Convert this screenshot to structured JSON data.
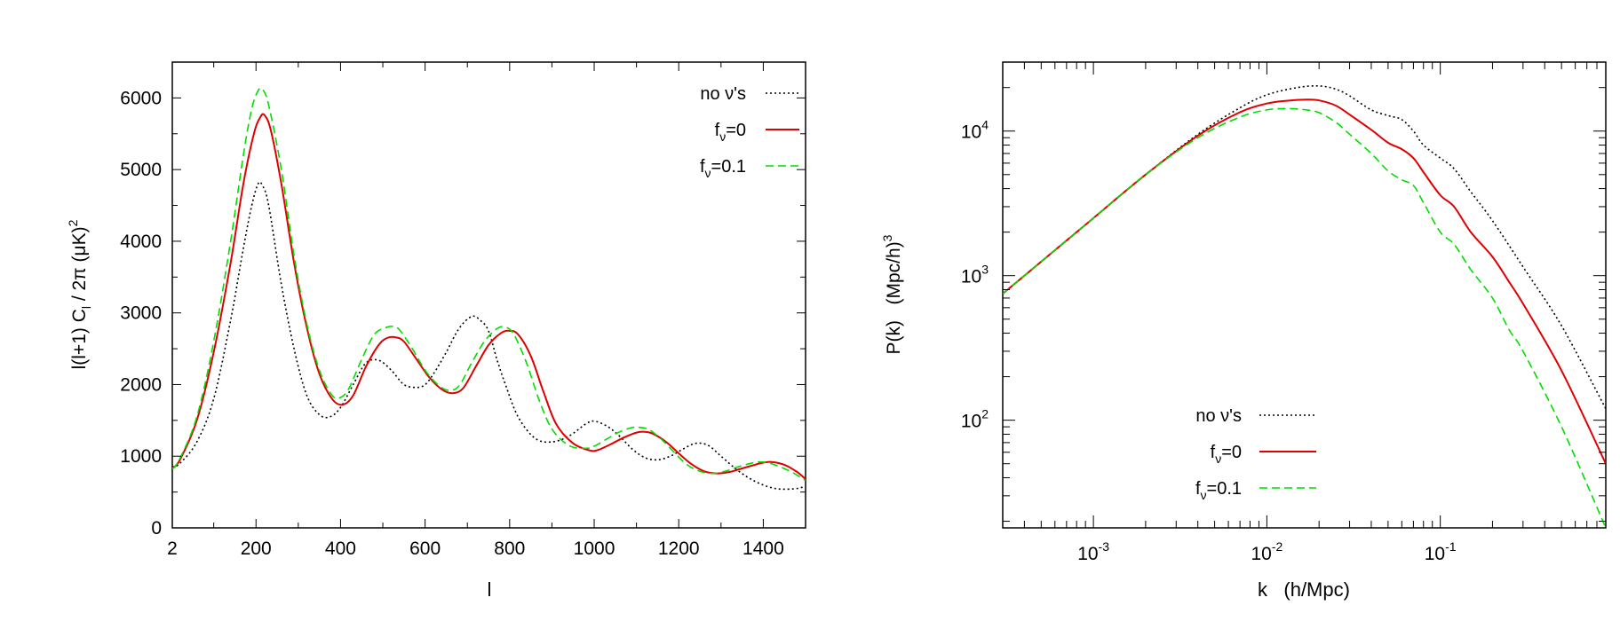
{
  "chart_data": [
    {
      "type": "line",
      "title": "",
      "xlabel": "l",
      "ylabel": "l(l+1) C_l / 2π  (μK)^2",
      "xlim": [
        2,
        1500
      ],
      "ylim": [
        0,
        6500
      ],
      "x_ticks": [
        2,
        200,
        400,
        600,
        800,
        1000,
        1200,
        1400
      ],
      "x_tick_labels": [
        "2",
        "200",
        "400",
        "600",
        "800",
        "1000",
        "1200",
        "1400"
      ],
      "y_ticks": [
        0,
        1000,
        2000,
        3000,
        4000,
        5000,
        6000
      ],
      "y_tick_labels": [
        "0",
        "1000",
        "2000",
        "3000",
        "4000",
        "5000",
        "6000"
      ],
      "legend_position": "top-right",
      "series": [
        {
          "name": "no ν's",
          "label_main": "no ν's",
          "color": "#000000",
          "dash": "dotted",
          "x": [
            2,
            20,
            60,
            100,
            140,
            170,
            190,
            205,
            215,
            230,
            260,
            290,
            320,
            350,
            375,
            400,
            430,
            460,
            490,
            520,
            550,
            580,
            600,
            620,
            650,
            680,
            710,
            730,
            750,
            770,
            790,
            820,
            860,
            900,
            940,
            980,
            1000,
            1030,
            1060,
            1090,
            1120,
            1150,
            1180,
            1210,
            1240,
            1270,
            1300,
            1340,
            1380,
            1420,
            1450,
            1480,
            1500
          ],
          "y": [
            850,
            900,
            1200,
            1800,
            2900,
            3900,
            4500,
            4800,
            4780,
            4500,
            3400,
            2500,
            1850,
            1580,
            1550,
            1680,
            2000,
            2300,
            2340,
            2200,
            2000,
            1960,
            2000,
            2150,
            2450,
            2780,
            2950,
            2900,
            2750,
            2350,
            2000,
            1550,
            1250,
            1200,
            1280,
            1450,
            1490,
            1420,
            1280,
            1100,
            980,
            950,
            1000,
            1100,
            1180,
            1150,
            1000,
            800,
            650,
            560,
            540,
            550,
            580
          ]
        },
        {
          "name": "f_ν=0",
          "label_main": "f",
          "label_sub": "ν",
          "label_tail": "=0",
          "color": "#e00000",
          "dash": "solid",
          "x": [
            2,
            20,
            60,
            100,
            140,
            170,
            195,
            210,
            220,
            235,
            260,
            290,
            320,
            350,
            380,
            405,
            430,
            460,
            490,
            510,
            530,
            550,
            580,
            610,
            640,
            665,
            690,
            720,
            750,
            780,
            800,
            820,
            850,
            880,
            910,
            950,
            990,
            1010,
            1040,
            1070,
            1100,
            1120,
            1140,
            1170,
            1200,
            1230,
            1260,
            1290,
            1320,
            1350,
            1380,
            1400,
            1420,
            1450,
            1480,
            1500
          ],
          "y": [
            830,
            950,
            1500,
            2450,
            3700,
            4800,
            5500,
            5730,
            5760,
            5550,
            4800,
            3700,
            2800,
            2150,
            1800,
            1720,
            1850,
            2250,
            2550,
            2650,
            2660,
            2600,
            2350,
            2100,
            1930,
            1880,
            1950,
            2250,
            2550,
            2720,
            2750,
            2700,
            2400,
            1900,
            1450,
            1180,
            1080,
            1090,
            1170,
            1260,
            1330,
            1340,
            1310,
            1200,
            1040,
            890,
            790,
            760,
            780,
            830,
            880,
            910,
            920,
            880,
            780,
            680
          ]
        },
        {
          "name": "f_ν=0.1",
          "label_main": "f",
          "label_sub": "ν",
          "label_tail": "=0.1",
          "color": "#00dd00",
          "dash": "dashed",
          "x": [
            2,
            20,
            60,
            100,
            140,
            170,
            190,
            205,
            215,
            230,
            260,
            290,
            320,
            350,
            380,
            400,
            420,
            450,
            480,
            510,
            525,
            540,
            570,
            600,
            630,
            655,
            680,
            710,
            740,
            770,
            790,
            810,
            840,
            870,
            900,
            940,
            980,
            1000,
            1030,
            1060,
            1090,
            1110,
            1130,
            1160,
            1190,
            1220,
            1250,
            1280,
            1310,
            1340,
            1370,
            1390,
            1410,
            1440,
            1470,
            1500
          ],
          "y": [
            820,
            970,
            1550,
            2600,
            4000,
            5200,
            5850,
            6100,
            6120,
            5900,
            5000,
            3800,
            2850,
            2200,
            1850,
            1820,
            1950,
            2350,
            2700,
            2800,
            2810,
            2760,
            2500,
            2200,
            2000,
            1920,
            1980,
            2300,
            2600,
            2780,
            2800,
            2700,
            2300,
            1780,
            1380,
            1150,
            1110,
            1140,
            1240,
            1340,
            1400,
            1400,
            1370,
            1230,
            1050,
            880,
            790,
            760,
            790,
            850,
            900,
            920,
            910,
            850,
            770,
            660
          ]
        }
      ]
    },
    {
      "type": "line",
      "title": "",
      "xlabel": "k   (h/Mpc)",
      "ylabel": "P(k)   (Mpc/h)^3",
      "x_scale": "log",
      "y_scale": "log",
      "xlim": [
        0.0003,
        0.9
      ],
      "ylim": [
        18,
        30000
      ],
      "x_ticks": [
        0.001,
        0.01,
        0.1
      ],
      "x_tick_labels": [
        {
          "base": "10",
          "exp": "-3"
        },
        {
          "base": "10",
          "exp": "-2"
        },
        {
          "base": "10",
          "exp": "-1"
        }
      ],
      "y_ticks": [
        100,
        1000,
        10000
      ],
      "y_tick_labels": [
        {
          "base": "10",
          "exp": "2"
        },
        {
          "base": "10",
          "exp": "3"
        },
        {
          "base": "10",
          "exp": "4"
        }
      ],
      "legend_position": "bottom-center",
      "series": [
        {
          "name": "no ν's",
          "label_main": "no ν's",
          "color": "#000000",
          "dash": "dotted",
          "x": [
            0.0003,
            0.0006,
            0.001,
            0.002,
            0.004,
            0.007,
            0.01,
            0.015,
            0.02,
            0.025,
            0.03,
            0.04,
            0.05,
            0.06,
            0.07,
            0.08,
            0.1,
            0.12,
            0.15,
            0.2,
            0.3,
            0.5,
            0.9
          ],
          "y": [
            750,
            1500,
            2500,
            5000,
            9500,
            14500,
            17800,
            20000,
            20500,
            19500,
            17500,
            14000,
            12800,
            12000,
            10000,
            8000,
            6500,
            5500,
            3800,
            2400,
            1150,
            450,
            120
          ]
        },
        {
          "name": "f_ν=0",
          "label_main": "f",
          "label_sub": "ν",
          "label_tail": "=0",
          "color": "#e00000",
          "dash": "solid",
          "x": [
            0.0003,
            0.0006,
            0.001,
            0.002,
            0.004,
            0.007,
            0.01,
            0.013,
            0.017,
            0.02,
            0.025,
            0.03,
            0.04,
            0.05,
            0.06,
            0.07,
            0.08,
            0.1,
            0.12,
            0.15,
            0.2,
            0.25,
            0.3,
            0.5,
            0.9
          ],
          "y": [
            750,
            1500,
            2500,
            5000,
            9300,
            13500,
            15500,
            16200,
            16500,
            16300,
            15000,
            13000,
            10200,
            8300,
            7500,
            6500,
            5200,
            3600,
            3000,
            2000,
            1350,
            900,
            640,
            220,
            50
          ]
        },
        {
          "name": "f_ν=0.1",
          "label_main": "f",
          "label_sub": "ν",
          "label_tail": "=0.1",
          "color": "#00dd00",
          "dash": "dashed",
          "x": [
            0.0003,
            0.0006,
            0.001,
            0.002,
            0.004,
            0.007,
            0.01,
            0.013,
            0.017,
            0.02,
            0.025,
            0.03,
            0.04,
            0.05,
            0.06,
            0.07,
            0.08,
            0.1,
            0.12,
            0.15,
            0.2,
            0.25,
            0.3,
            0.5,
            0.9
          ],
          "y": [
            750,
            1500,
            2500,
            5000,
            9000,
            12500,
            14000,
            14300,
            14000,
            13400,
            11500,
            9500,
            7000,
            5300,
            4600,
            4200,
            3200,
            2000,
            1650,
            1100,
            700,
            420,
            300,
            90,
            18
          ]
        }
      ]
    }
  ]
}
